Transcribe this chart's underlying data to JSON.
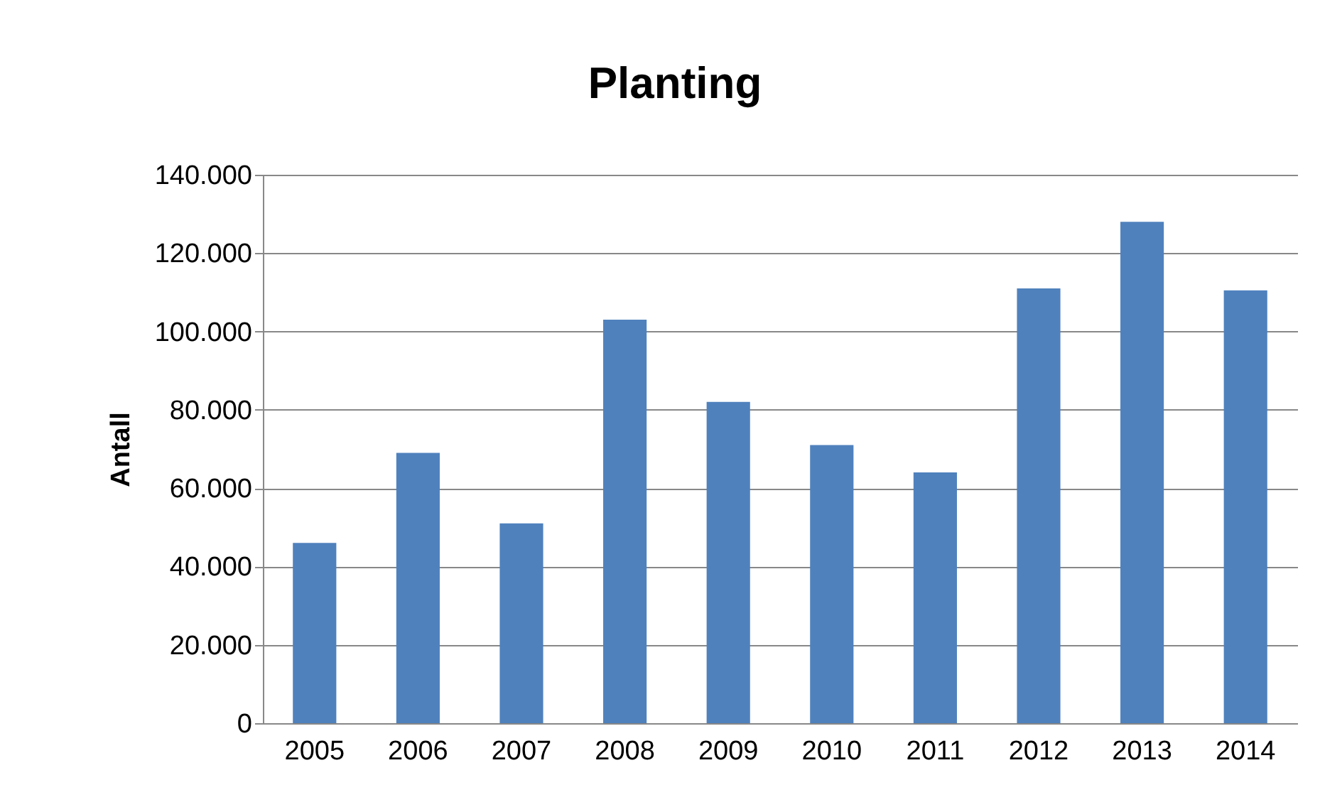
{
  "chart_data": {
    "type": "bar",
    "title": "Planting",
    "ylabel": "Antall",
    "categories": [
      "2005",
      "2006",
      "2007",
      "2008",
      "2009",
      "2010",
      "2011",
      "2012",
      "2013",
      "2014"
    ],
    "values": [
      46000,
      69000,
      51000,
      103000,
      82000,
      71000,
      64000,
      111000,
      128000,
      110500
    ],
    "color": "#4f81bd",
    "ylim": [
      0,
      140000
    ],
    "yticks": [
      0,
      {
        "value": 20000,
        "label": "20.000"
      },
      {
        "value": 40000,
        "label": "40.000"
      },
      {
        "value": 60000,
        "label": "60.000"
      },
      {
        "value": 80000,
        "label": "80.000"
      },
      {
        "value": 100000,
        "label": "100.000"
      },
      {
        "value": 120000,
        "label": "120.000"
      },
      {
        "value": 140000,
        "label": "140.000"
      }
    ],
    "grid": "y"
  }
}
